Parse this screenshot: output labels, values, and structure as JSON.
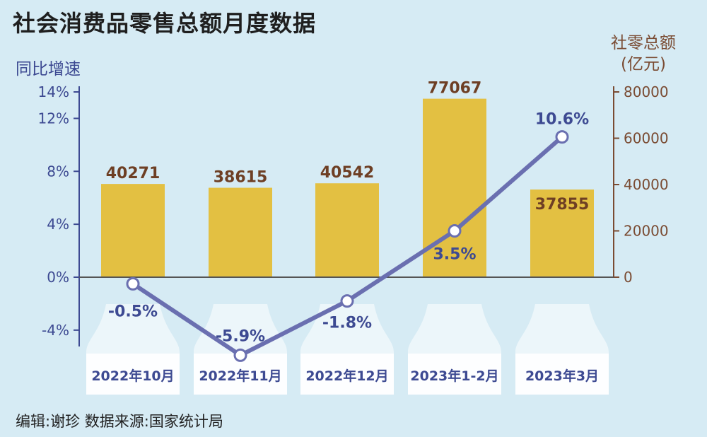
{
  "chart_data": {
    "type": "bar",
    "title": "社会消费品零售总额月度数据",
    "categories": [
      "2022年10月",
      "2022年11月",
      "2022年12月",
      "2023年1-2月",
      "2023年3月"
    ],
    "series": [
      {
        "name": "社零总额",
        "type": "bar",
        "axis": "right",
        "values": [
          40271,
          38615,
          40542,
          77067,
          37855
        ],
        "labels": [
          "40271",
          "38615",
          "40542",
          "77067",
          "37855"
        ]
      },
      {
        "name": "同比增速",
        "type": "line",
        "axis": "left",
        "values": [
          -0.5,
          -5.9,
          -1.8,
          3.5,
          10.6
        ],
        "labels": [
          "-0.5%",
          "-5.9%",
          "-1.8%",
          "3.5%",
          "10.6%"
        ]
      }
    ],
    "left_axis": {
      "label": "同比增速",
      "range": [
        -6,
        14
      ],
      "ticks": [
        14,
        12,
        8,
        4,
        0,
        -4
      ],
      "tick_labels": [
        "14%",
        "12%",
        "8%",
        "4%",
        "0%",
        "-4%"
      ]
    },
    "right_axis": {
      "label_line1": "社零总额",
      "label_line2": "(亿元)",
      "range": [
        0,
        80000
      ],
      "ticks": [
        80000,
        60000,
        40000,
        20000,
        0
      ],
      "tick_labels": [
        "80000",
        "60000",
        "40000",
        "20000",
        "0"
      ]
    },
    "colors": {
      "bar": "#e3c042",
      "line": "#6a6fb0",
      "point_fill": "#ffffff",
      "category_tab": "#ffffff",
      "left_axis": "#3d4a92",
      "right_axis": "#7a4b32"
    }
  },
  "footer": "编辑:谢珍   数据来源:国家统计局"
}
